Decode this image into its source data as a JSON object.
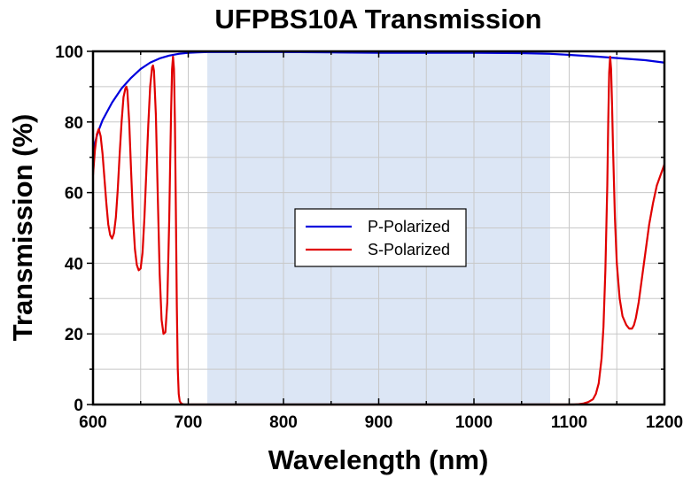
{
  "chart_data": {
    "type": "line",
    "title": "UFPBS10A Transmission",
    "xlabel": "Wavelength (nm)",
    "ylabel": "Transmission (%)",
    "xlim": [
      600,
      1200
    ],
    "ylim": [
      0,
      100
    ],
    "x_ticks": [
      600,
      700,
      800,
      900,
      1000,
      1100,
      1200
    ],
    "y_ticks": [
      0,
      20,
      40,
      60,
      80,
      100
    ],
    "grid": true,
    "highlight_band": {
      "x_range": [
        720,
        1080
      ],
      "color": "#dce6f5"
    },
    "legend": {
      "placement": "center",
      "entries": [
        "P-Polarized",
        "S-Polarized"
      ]
    },
    "series": [
      {
        "name": "P-Polarized",
        "color": "#0000dd",
        "x": [
          600,
          605,
          610,
          620,
          630,
          640,
          650,
          660,
          670,
          680,
          690,
          700,
          710,
          720,
          750,
          800,
          850,
          900,
          950,
          1000,
          1050,
          1080,
          1100,
          1130,
          1160,
          1180,
          1200
        ],
        "y": [
          72,
          77,
          80.5,
          85.5,
          89.5,
          92.5,
          95,
          96.8,
          98,
          98.8,
          99.3,
          99.6,
          99.7,
          99.8,
          99.8,
          99.8,
          99.7,
          99.6,
          99.6,
          99.6,
          99.5,
          99.3,
          99,
          98.5,
          97.9,
          97.5,
          96.8
        ]
      },
      {
        "name": "S-Polarized",
        "color": "#e00000",
        "x": [
          600,
          602,
          604,
          606,
          608,
          610,
          612,
          614,
          616,
          618,
          620,
          622,
          624,
          626,
          628,
          630,
          632,
          634,
          635,
          636,
          638,
          640,
          642,
          644,
          646,
          648,
          650,
          652,
          654,
          656,
          658,
          660,
          662,
          663,
          664,
          666,
          668,
          670,
          672,
          674,
          676,
          678,
          680,
          681,
          682,
          683,
          684,
          685,
          686,
          687,
          688,
          689,
          690,
          691,
          692,
          694,
          696,
          700,
          720,
          800,
          900,
          1000,
          1080,
          1100,
          1105,
          1110,
          1115,
          1120,
          1125,
          1128,
          1131,
          1134,
          1136,
          1138,
          1140,
          1141,
          1142,
          1143,
          1144,
          1145,
          1146,
          1148,
          1150,
          1153,
          1156,
          1160,
          1163,
          1166,
          1168,
          1170,
          1173,
          1176,
          1180,
          1184,
          1188,
          1192,
          1196,
          1200
        ],
        "y": [
          65,
          72,
          76.5,
          78,
          76,
          71,
          64,
          57,
          51,
          48,
          47,
          48.5,
          53,
          61,
          71,
          80,
          87,
          89.5,
          90,
          89,
          80,
          66,
          53,
          44,
          39.5,
          38,
          38.5,
          43,
          53,
          66,
          79,
          90,
          95.5,
          96,
          94.5,
          82,
          59,
          37,
          24,
          20,
          20.5,
          29,
          52,
          68,
          83,
          95,
          98.5,
          95,
          80,
          55,
          28,
          10,
          3,
          1,
          0.5,
          0.1,
          0,
          0,
          0,
          0,
          0,
          0,
          0,
          0,
          0,
          0.1,
          0.3,
          0.7,
          1.5,
          3,
          6,
          13,
          22,
          38,
          62,
          80,
          94,
          98.5,
          95,
          85,
          73,
          53,
          40,
          30,
          25,
          22.5,
          21.5,
          21.5,
          22.5,
          24.5,
          29,
          35,
          43,
          51,
          57,
          62,
          65,
          68
        ]
      }
    ]
  }
}
